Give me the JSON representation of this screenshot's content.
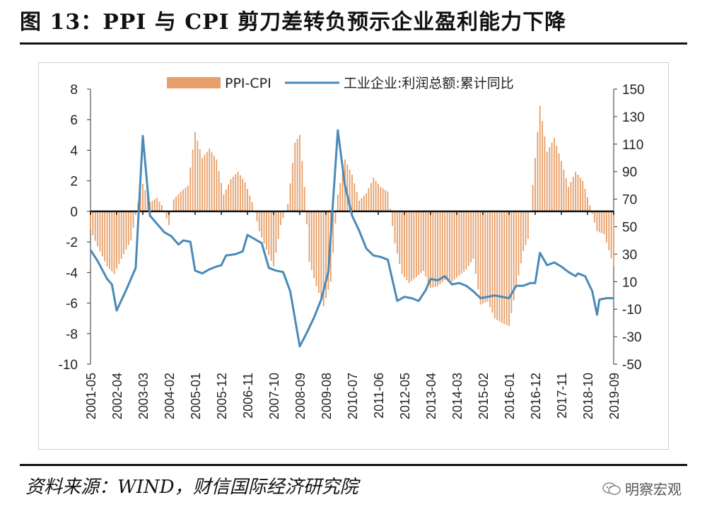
{
  "title": "图 13：PPI 与 CPI 剪刀差转负预示企业盈利能力下降",
  "source": "资料来源：WIND，财信国际经济研究院",
  "watermark": "明察宏观",
  "watermark_icon": "wechat-icon",
  "chart_data": {
    "type": "bar+line",
    "legend_position": "top",
    "grid": false,
    "x_ticks": [
      "2001-05",
      "2002-04",
      "2003-03",
      "2004-02",
      "2005-01",
      "2005-12",
      "2006-11",
      "2007-10",
      "2008-09",
      "2009-08",
      "2010-07",
      "2011-06",
      "2012-05",
      "2013-04",
      "2014-03",
      "2015-02",
      "2016-01",
      "2016-12",
      "2017-11",
      "2018-10",
      "2019-09"
    ],
    "y_left": {
      "min": -10,
      "max": 8,
      "ticks": [
        8,
        6,
        4,
        2,
        0,
        -2,
        -4,
        -6,
        -8,
        -10
      ]
    },
    "y_right": {
      "min": -50,
      "max": 150,
      "ticks": [
        150,
        130,
        110,
        90,
        70,
        50,
        30,
        10,
        -10,
        -30,
        -50
      ]
    },
    "series": [
      {
        "name": "PPI-CPI",
        "type": "bar",
        "axis": "left",
        "color": "#e8a06a",
        "x_range": [
          "2001-05",
          "2019-09"
        ],
        "anchors": [
          [
            "2001-05",
            -1.2
          ],
          [
            "2001-08",
            -2.3
          ],
          [
            "2001-12",
            -3.6
          ],
          [
            "2002-03",
            -4.1
          ],
          [
            "2002-06",
            -3.1
          ],
          [
            "2002-10",
            -1.9
          ],
          [
            "2003-01",
            0.6
          ],
          [
            "2003-03",
            1.8
          ],
          [
            "2003-06",
            0.6
          ],
          [
            "2003-09",
            0.9
          ],
          [
            "2003-11",
            0.4
          ],
          [
            "2004-02",
            -0.9
          ],
          [
            "2004-04",
            0.8
          ],
          [
            "2004-07",
            1.3
          ],
          [
            "2004-10",
            1.7
          ],
          [
            "2005-01",
            5.2
          ],
          [
            "2005-04",
            3.5
          ],
          [
            "2005-07",
            4.1
          ],
          [
            "2005-10",
            3.4
          ],
          [
            "2006-01",
            1.1
          ],
          [
            "2006-04",
            2.1
          ],
          [
            "2006-07",
            2.6
          ],
          [
            "2006-10",
            1.9
          ],
          [
            "2007-01",
            0.6
          ],
          [
            "2007-04",
            -1.3
          ],
          [
            "2007-07",
            -2.5
          ],
          [
            "2007-10",
            -3.6
          ],
          [
            "2008-01",
            -0.9
          ],
          [
            "2008-04",
            0.5
          ],
          [
            "2008-07",
            4.5
          ],
          [
            "2008-09",
            5.0
          ],
          [
            "2008-11",
            1.6
          ],
          [
            "2009-01",
            -3.3
          ],
          [
            "2009-04",
            -4.9
          ],
          [
            "2009-07",
            -6.2
          ],
          [
            "2009-10",
            -4.6
          ],
          [
            "2010-01",
            1.1
          ],
          [
            "2010-04",
            3.4
          ],
          [
            "2010-07",
            2.4
          ],
          [
            "2010-10",
            0.7
          ],
          [
            "2011-01",
            1.2
          ],
          [
            "2011-04",
            2.2
          ],
          [
            "2011-07",
            1.6
          ],
          [
            "2011-10",
            1.3
          ],
          [
            "2012-01",
            -2.1
          ],
          [
            "2012-04",
            -4.1
          ],
          [
            "2012-07",
            -4.7
          ],
          [
            "2012-10",
            -4.3
          ],
          [
            "2013-01",
            -3.9
          ],
          [
            "2013-04",
            -5.0
          ],
          [
            "2013-07",
            -4.9
          ],
          [
            "2013-10",
            -4.5
          ],
          [
            "2014-01",
            -4.6
          ],
          [
            "2014-04",
            -4.2
          ],
          [
            "2014-07",
            -3.8
          ],
          [
            "2014-10",
            -3.1
          ],
          [
            "2015-01",
            -6.1
          ],
          [
            "2015-04",
            -5.9
          ],
          [
            "2015-07",
            -7.0
          ],
          [
            "2015-10",
            -7.3
          ],
          [
            "2016-01",
            -7.5
          ],
          [
            "2016-04",
            -5.0
          ],
          [
            "2016-07",
            -2.6
          ],
          [
            "2016-09",
            -1.8
          ],
          [
            "2016-12",
            3.5
          ],
          [
            "2017-02",
            6.9
          ],
          [
            "2017-05",
            3.9
          ],
          [
            "2017-08",
            4.8
          ],
          [
            "2017-11",
            3.3
          ],
          [
            "2018-02",
            1.6
          ],
          [
            "2018-05",
            2.6
          ],
          [
            "2018-08",
            2.0
          ],
          [
            "2018-11",
            0.4
          ],
          [
            "2019-02",
            -1.3
          ],
          [
            "2019-05",
            -1.5
          ],
          [
            "2019-09",
            -3.6
          ]
        ]
      },
      {
        "name": "工业企业:利润总额:累计同比",
        "type": "line",
        "axis": "right",
        "color": "#4a8ab8",
        "points": [
          [
            "2001-05",
            33
          ],
          [
            "2001-08",
            25
          ],
          [
            "2001-12",
            12
          ],
          [
            "2002-02",
            8
          ],
          [
            "2002-04",
            -11
          ],
          [
            "2002-08",
            4
          ],
          [
            "2002-12",
            20
          ],
          [
            "2003-03",
            116
          ],
          [
            "2003-06",
            58
          ],
          [
            "2003-09",
            52
          ],
          [
            "2003-12",
            46
          ],
          [
            "2004-03",
            43
          ],
          [
            "2004-06",
            37
          ],
          [
            "2004-08",
            40
          ],
          [
            "2004-11",
            39
          ],
          [
            "2005-01",
            18
          ],
          [
            "2005-04",
            16
          ],
          [
            "2005-07",
            19
          ],
          [
            "2005-10",
            21
          ],
          [
            "2005-12",
            22
          ],
          [
            "2006-02",
            29
          ],
          [
            "2006-06",
            30
          ],
          [
            "2006-09",
            32
          ],
          [
            "2006-11",
            44
          ],
          [
            "2007-02",
            41
          ],
          [
            "2007-05",
            38
          ],
          [
            "2007-08",
            20
          ],
          [
            "2007-11",
            18
          ],
          [
            "2008-02",
            17
          ],
          [
            "2008-05",
            3
          ],
          [
            "2008-09",
            -37
          ],
          [
            "2008-12",
            -27
          ],
          [
            "2009-03",
            -16
          ],
          [
            "2009-06",
            -3
          ],
          [
            "2009-09",
            17
          ],
          [
            "2010-01",
            120
          ],
          [
            "2010-04",
            80
          ],
          [
            "2010-07",
            58
          ],
          [
            "2010-10",
            47
          ],
          [
            "2011-01",
            34
          ],
          [
            "2011-04",
            29
          ],
          [
            "2011-07",
            28
          ],
          [
            "2011-10",
            26
          ],
          [
            "2012-02",
            -4
          ],
          [
            "2012-05",
            -1
          ],
          [
            "2012-08",
            -2
          ],
          [
            "2012-11",
            -4
          ],
          [
            "2013-02",
            4
          ],
          [
            "2013-04",
            12
          ],
          [
            "2013-07",
            11
          ],
          [
            "2013-10",
            14
          ],
          [
            "2014-01",
            8
          ],
          [
            "2014-04",
            9
          ],
          [
            "2014-07",
            7
          ],
          [
            "2014-10",
            3
          ],
          [
            "2015-01",
            -2
          ],
          [
            "2015-04",
            -1
          ],
          [
            "2015-07",
            0
          ],
          [
            "2015-10",
            -1
          ],
          [
            "2016-01",
            -2
          ],
          [
            "2016-04",
            7
          ],
          [
            "2016-07",
            7
          ],
          [
            "2016-10",
            9
          ],
          [
            "2016-12",
            9
          ],
          [
            "2017-02",
            31
          ],
          [
            "2017-05",
            22
          ],
          [
            "2017-08",
            24
          ],
          [
            "2017-11",
            21
          ],
          [
            "2018-02",
            17
          ],
          [
            "2018-05",
            14
          ],
          [
            "2018-06",
            16
          ],
          [
            "2018-09",
            14
          ],
          [
            "2018-12",
            3
          ],
          [
            "2019-02",
            -14
          ],
          [
            "2019-03",
            -3
          ],
          [
            "2019-06",
            -2
          ],
          [
            "2019-09",
            -2
          ]
        ]
      }
    ]
  }
}
